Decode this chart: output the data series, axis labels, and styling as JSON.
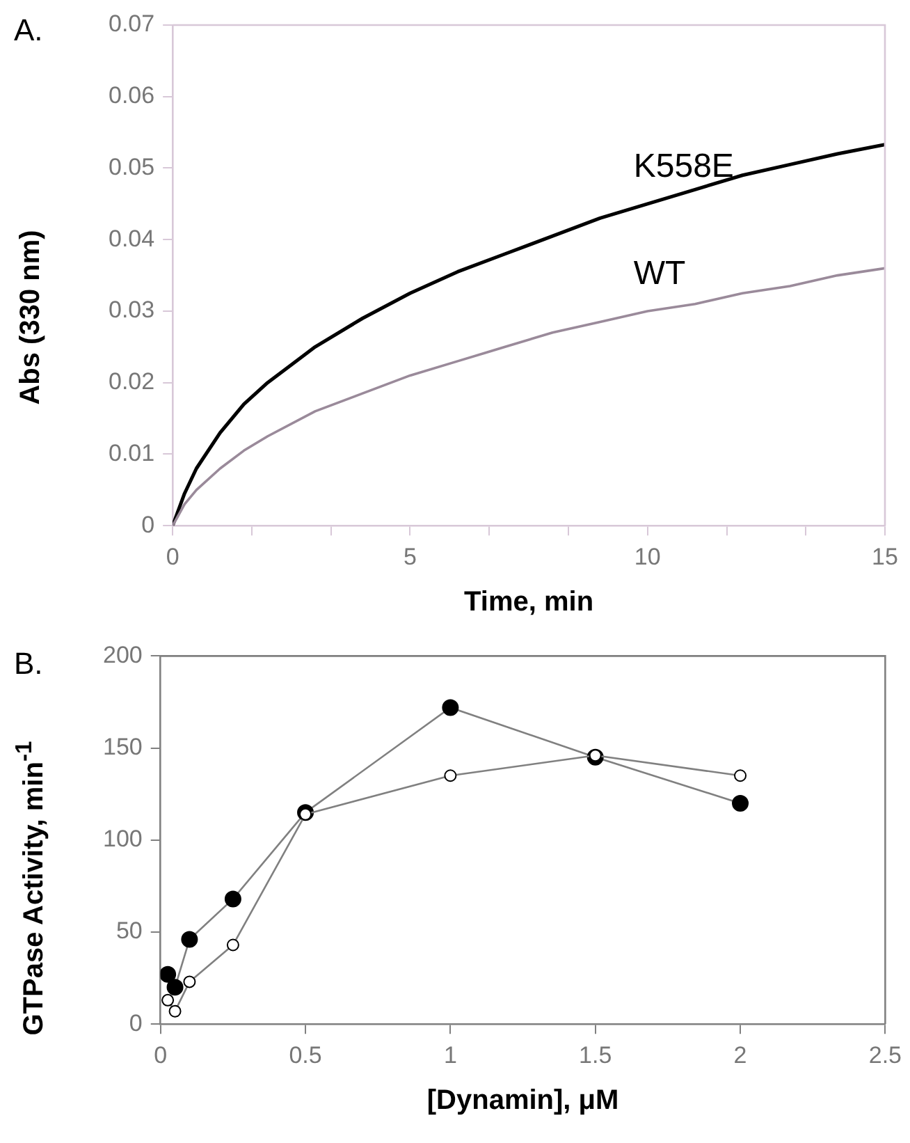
{
  "chart_data": [
    {
      "type": "line",
      "title": "A.",
      "xlabel": "Time, min",
      "ylabel": "Abs (330 nm)",
      "xlim": [
        0,
        15
      ],
      "ylim": [
        0,
        0.07
      ],
      "xticks": [
        0,
        {
          "value": 1.667,
          "label": null
        },
        {
          "value": 3.333,
          "label": null
        },
        5,
        {
          "value": 6.667,
          "label": null
        },
        {
          "value": 8.333,
          "label": null
        },
        10,
        {
          "value": 11.667,
          "label": null
        },
        {
          "value": 13.333,
          "label": null
        },
        15
      ],
      "yticks": [
        0,
        0.01,
        0.02,
        0.03,
        0.04,
        0.05,
        0.06,
        0.07
      ],
      "grid": false,
      "legend": false,
      "marker": "none",
      "line_style": "solid",
      "series": [
        {
          "name": "K558E",
          "color": "#000000",
          "x": [
            0,
            0.25,
            0.5,
            1,
            1.5,
            2,
            3,
            4,
            5,
            6,
            7,
            8,
            9,
            10,
            11,
            12,
            13,
            14,
            15
          ],
          "values": [
            0,
            0.0045,
            0.008,
            0.013,
            0.017,
            0.02,
            0.025,
            0.029,
            0.0325,
            0.0355,
            0.038,
            0.0405,
            0.043,
            0.045,
            0.047,
            0.049,
            0.0505,
            0.052,
            0.0533
          ]
        },
        {
          "name": "WT",
          "color": "#9a8a9a",
          "x": [
            0,
            0.25,
            0.5,
            1,
            1.5,
            2,
            3,
            4,
            5,
            6,
            7,
            8,
            9,
            10,
            11,
            12,
            13,
            14,
            15
          ],
          "values": [
            0,
            0.003,
            0.005,
            0.008,
            0.0105,
            0.0125,
            0.016,
            0.0185,
            0.021,
            0.023,
            0.025,
            0.027,
            0.0285,
            0.03,
            0.031,
            0.0325,
            0.0335,
            0.035,
            0.036
          ]
        }
      ]
    },
    {
      "type": "line",
      "title": "B.",
      "xlabel": "[Dynamin], μM",
      "ylabel": "GTPase Activity, min$^{-1}$",
      "xlim": [
        0,
        2.5
      ],
      "ylim": [
        0,
        200
      ],
      "xticks": [
        0,
        0.5,
        1,
        1.5,
        2,
        2.5
      ],
      "yticks": [
        0,
        50,
        100,
        150,
        200
      ],
      "grid": false,
      "legend": false,
      "marker": "circle",
      "line_style": "solid",
      "series": [
        {
          "color": "#000000",
          "x": [
            0.025,
            0.05,
            0.1,
            0.25,
            0.5,
            1,
            1.5,
            2
          ],
          "values": [
            27,
            20,
            46,
            68,
            115,
            172,
            145,
            120
          ]
        },
        {
          "color": "#ffffff",
          "x": [
            0.025,
            0.05,
            0.1,
            0.25,
            0.5,
            1,
            1.5,
            2
          ],
          "values": [
            13,
            7,
            23,
            43,
            114,
            135,
            146,
            135
          ]
        }
      ]
    }
  ]
}
